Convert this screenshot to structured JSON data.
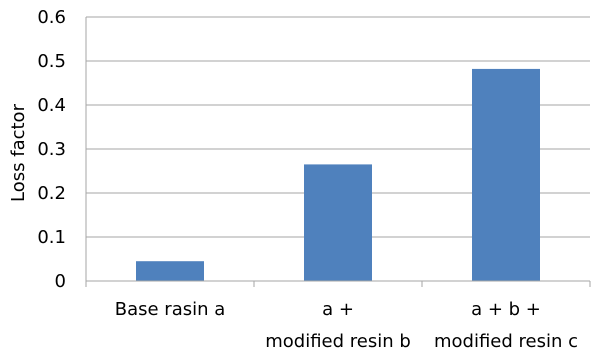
{
  "chart_data": {
    "type": "bar",
    "categories": [
      [
        "Base rasin a"
      ],
      [
        "a +",
        "modified resin b"
      ],
      [
        "a + b +",
        "modified resin c"
      ]
    ],
    "values": [
      0.045,
      0.265,
      0.482
    ],
    "xlabel": "",
    "ylabel": "Loss factor",
    "ylim": [
      0,
      0.6
    ],
    "yticks": [
      "0",
      "0.1",
      "0.2",
      "0.3",
      "0.4",
      "0.5",
      "0.6"
    ],
    "grid": true,
    "legend": "none",
    "bar_color": "#4F81BD",
    "grid_color": "#A6A6A6"
  }
}
